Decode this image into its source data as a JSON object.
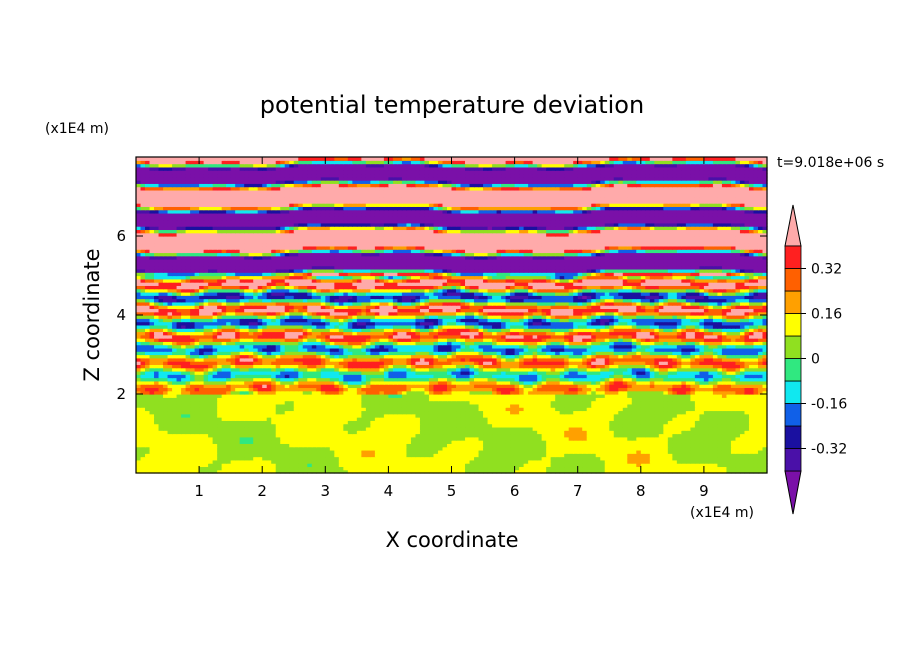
{
  "chart_data": {
    "type": "heatmap",
    "title": "potential temperature deviation",
    "xlabel": "X coordinate",
    "ylabel": "Z coordinate",
    "x_unit": "(x1E4 m)",
    "y_unit": "(x1E4 m)",
    "time_label": "t=9.018e+06 s",
    "xlim": [
      0,
      10
    ],
    "ylim": [
      0,
      8
    ],
    "x_ticks": [
      1,
      2,
      3,
      4,
      5,
      6,
      7,
      8,
      9
    ],
    "y_ticks": [
      2,
      4,
      6
    ],
    "x_tick_labels": [
      "1",
      "2",
      "3",
      "4",
      "5",
      "6",
      "7",
      "8",
      "9"
    ],
    "y_tick_labels": [
      "2",
      "4",
      "6"
    ],
    "colorbar": {
      "levels": [
        -0.48,
        -0.4,
        -0.32,
        -0.24,
        -0.16,
        -0.08,
        0,
        0.08,
        0.16,
        0.24,
        0.32,
        0.4,
        0.48
      ],
      "tick_values": [
        -0.32,
        -0.16,
        0,
        0.16,
        0.32
      ],
      "tick_labels": [
        "-0.32",
        "-0.16",
        "0",
        "0.16",
        "0.32"
      ],
      "colors": [
        "#7a10a8",
        "#4a10a8",
        "#1a10a0",
        "#1060e8",
        "#10e8f0",
        "#30e880",
        "#90e020",
        "#ffff00",
        "#ffa000",
        "#ff6000",
        "#ff2020",
        "#ffaaaa"
      ],
      "extend": "both"
    },
    "regions": [
      {
        "z_range": [
          0,
          2
        ],
        "description": "lower layer, values near 0 (green / yellow-green)"
      },
      {
        "z_range": [
          2,
          5
        ],
        "description": "turbulent mixed layer with alternating positive and negative bands"
      },
      {
        "z_range": [
          5,
          8
        ],
        "description": "upper layer with alternating strong positive (pink) and negative (purple) horizontal bands"
      }
    ]
  }
}
